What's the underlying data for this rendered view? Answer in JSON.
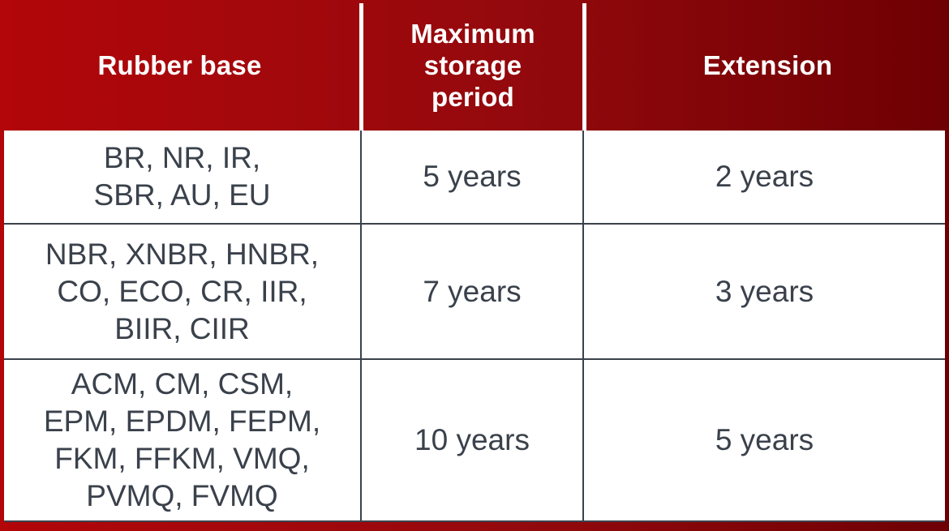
{
  "page": {
    "background_gradient_left": "#b20609",
    "background_gradient_right": "#6e0003"
  },
  "table": {
    "border_color": "#3b424c",
    "body_text_color": "#3a414b",
    "header_text_color": "#ffffff",
    "header": {
      "rubber_base": "Rubber base",
      "max_storage": "Maximum\nstorage\nperiod",
      "extension": "Extension"
    },
    "rows": [
      {
        "rubber_base": "BR, NR, IR,\nSBR, AU, EU",
        "max_storage": "5 years",
        "extension": "2 years"
      },
      {
        "rubber_base": "NBR, XNBR, HNBR,\nCO, ECO, CR, IIR,\nBIIR, CIIR",
        "max_storage": "7 years",
        "extension": "3 years"
      },
      {
        "rubber_base": "ACM, CM, CSM,\nEPM, EPDM, FEPM,\nFKM, FFKM, VMQ,\nPVMQ, FVMQ",
        "max_storage": "10 years",
        "extension": "5 years"
      }
    ]
  }
}
